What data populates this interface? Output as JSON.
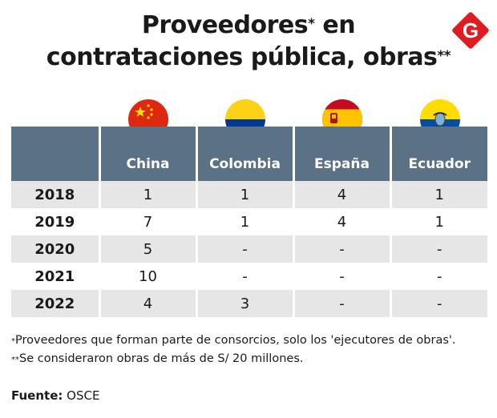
{
  "title": {
    "line1_text": "Proveedores",
    "line1_mark": "*",
    "line1_tail": " en",
    "line2_text": "contrataciones pública, obras",
    "line2_mark": "**"
  },
  "logo": {
    "letter": "G",
    "color": "#e11b22"
  },
  "table": {
    "headers": [
      "",
      "China",
      "Colombia",
      "España",
      "Ecuador"
    ],
    "rows": [
      {
        "year": "2018",
        "values": [
          "1",
          "1",
          "4",
          "1"
        ]
      },
      {
        "year": "2019",
        "values": [
          "7",
          "1",
          "4",
          "1"
        ]
      },
      {
        "year": "2020",
        "values": [
          "5",
          "-",
          "-",
          "-"
        ]
      },
      {
        "year": "2021",
        "values": [
          "10",
          "-",
          "-",
          "-"
        ]
      },
      {
        "year": "2022",
        "values": [
          "4",
          "3",
          "-",
          "-"
        ]
      }
    ],
    "header_color": "#5b7185",
    "stripe_color": "#e6e6e6"
  },
  "flags": [
    "china-flag-icon",
    "colombia-flag-icon",
    "spain-flag-icon",
    "ecuador-flag-icon"
  ],
  "notes": {
    "note1_mark": "*",
    "note1": "Proveedores que forman parte de consorcios, solo los 'ejecutores de obras'.",
    "note2_mark": "**",
    "note2": "Se consideraron obras de más de S/ 20 millones."
  },
  "source": {
    "label": "Fuente:",
    "value": "OSCE"
  }
}
